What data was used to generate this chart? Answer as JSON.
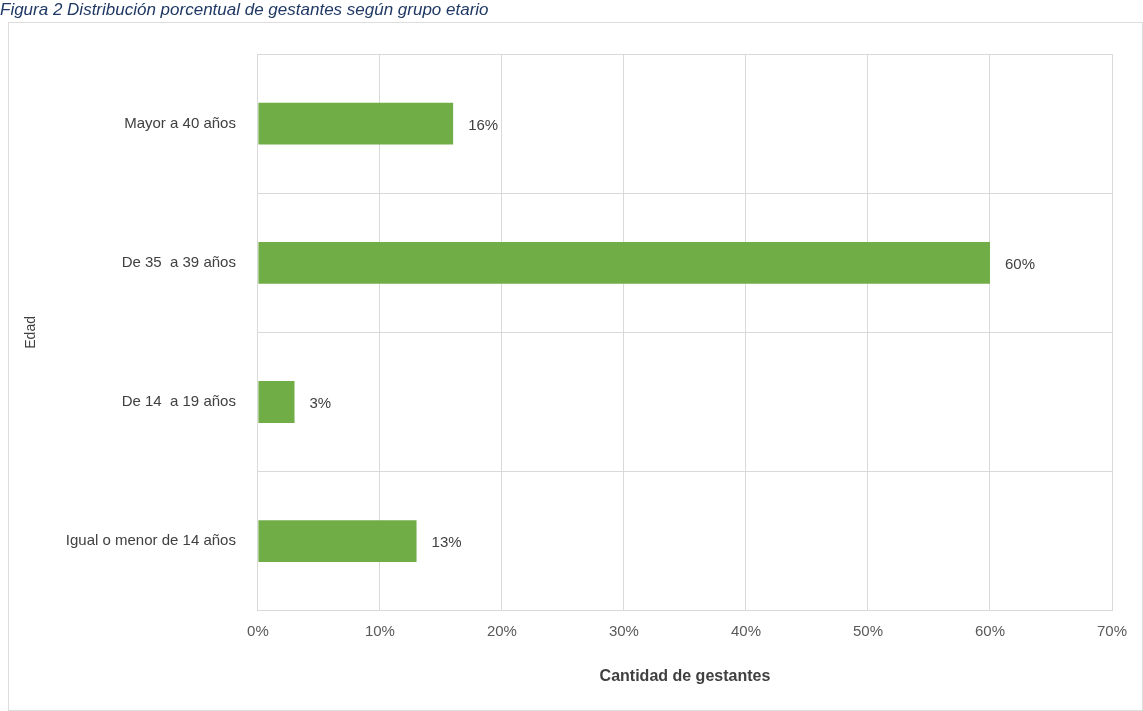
{
  "chart_data": {
    "type": "bar",
    "orientation": "horizontal",
    "title": "Figura 2 Distribución porcentual de gestantes según grupo etario",
    "xlabel": "Cantidad de gestantes",
    "ylabel": "Edad",
    "categories": [
      "Mayor a 40 años",
      "De 35  a 39 años",
      "De 14  a 19 años",
      "Igual o menor de 14 años"
    ],
    "values": [
      16,
      60,
      3,
      13
    ],
    "color": "#70ad47",
    "value_labels": [
      "16%",
      "60%",
      "3%",
      "13%"
    ],
    "xlim": [
      0,
      70
    ],
    "xticks": [
      {
        "value": 0,
        "label": "0%"
      },
      {
        "value": 10,
        "label": "10%"
      },
      {
        "value": 20,
        "label": "20%"
      },
      {
        "value": 30,
        "label": "30%"
      },
      {
        "value": 40,
        "label": "40%"
      },
      {
        "value": 50,
        "label": "50%"
      },
      {
        "value": 60,
        "label": "60%"
      },
      {
        "value": 70,
        "label": "70%"
      }
    ],
    "grid": true,
    "legend": false
  }
}
